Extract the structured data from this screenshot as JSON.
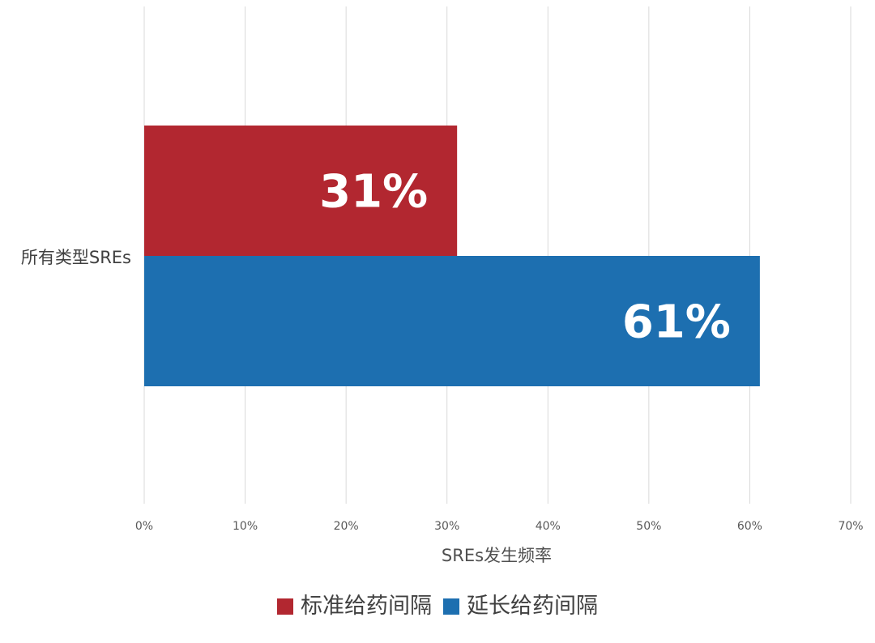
{
  "chart_data": {
    "type": "bar",
    "orientation": "horizontal",
    "categories": [
      "所有类型SREs"
    ],
    "series": [
      {
        "name": "标准给药间隔",
        "values": [
          31
        ],
        "data_label": "31%",
        "color": "#b22730"
      },
      {
        "name": "延长给药间隔",
        "values": [
          61
        ],
        "data_label": "61%",
        "color": "#1d6fb0"
      }
    ],
    "xlabel": "SREs发生频率",
    "ylabel": "",
    "xlim": [
      0,
      70
    ],
    "x_ticks": [
      {
        "value": 0,
        "label": "0%"
      },
      {
        "value": 10,
        "label": "10%"
      },
      {
        "value": 20,
        "label": "20%"
      },
      {
        "value": 30,
        "label": "30%"
      },
      {
        "value": 40,
        "label": "40%"
      },
      {
        "value": 50,
        "label": "50%"
      },
      {
        "value": 60,
        "label": "60%"
      },
      {
        "value": 70,
        "label": "70%"
      }
    ],
    "grid": true,
    "legend_position": "bottom"
  }
}
